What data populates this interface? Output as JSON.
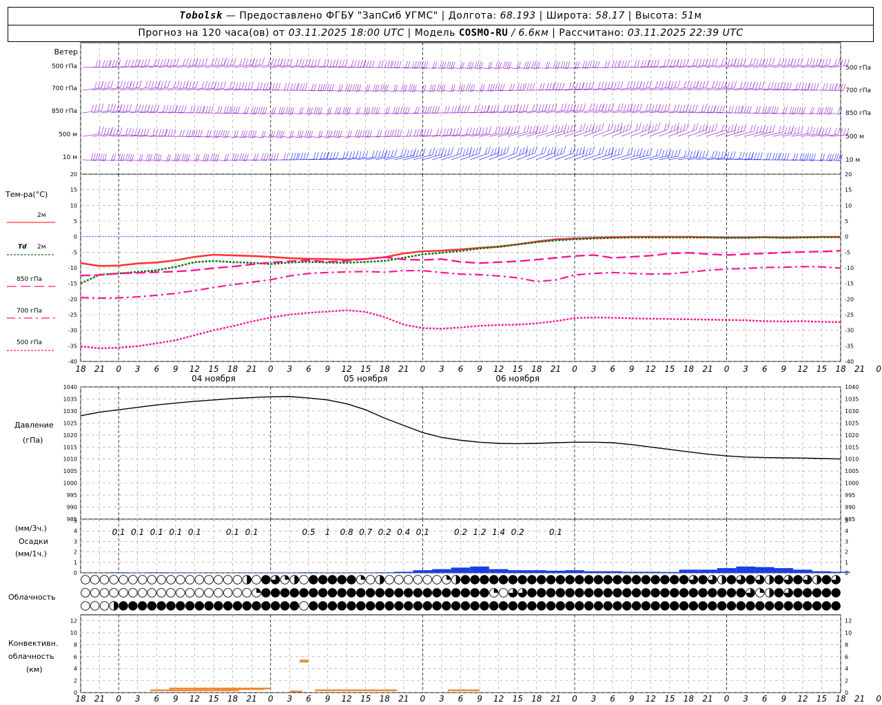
{
  "header": {
    "station": "Tobolsk",
    "provided": "— Предоставлено ФГБУ \"ЗапСиб УГМС\"",
    "lon_label": "Долгота:",
    "lon": "68.193",
    "lat_label": "Широта:",
    "lat": "58.17",
    "alt_label": "Высота:",
    "alt": "51",
    "alt_unit": "м",
    "forecast_label": "Прогноз на 120 часа(ов) от",
    "forecast_time": "03.11.2025 18:00 UTC",
    "model_label": "Модель",
    "model": "COSMO-RU",
    "resolution": "/ 6.6км",
    "calc_label": "Рассчитано:",
    "calc_time": "03.11.2025 22:39 UTC"
  },
  "labels": {
    "wind": "Ветер",
    "wind_levels": [
      "500 гПа",
      "700 гПа",
      "850 гПа",
      "500 м",
      "10  м"
    ],
    "temp": "Тем-ра(°C)",
    "t2m": "2м",
    "td": "Td",
    "td2m": "2м",
    "t850": "850 гПа",
    "t700": "700 гПа",
    "t500": "500 гПа",
    "pressure": "Давление",
    "pressure_unit": "(гПа)",
    "precip_unit1": "(мм/3ч.)",
    "precip": "Осадки",
    "precip_unit2": "(мм/1ч.)",
    "cloud": "Облачность",
    "conv1": "Конвективн.",
    "conv2": "облачность",
    "conv3": "(км)"
  },
  "colors": {
    "t2m": "#ff3333",
    "td": "#107010",
    "levels": "#ff1493",
    "wind": "#9a30d0",
    "wind_blue": "#3030ff",
    "precip": "#1a3ee6",
    "conv": "#f08a30",
    "zero": "#2040ff"
  },
  "chart_data": [
    {
      "type": "wind-barbs",
      "levels": [
        "500 гПа",
        "700 гПа",
        "850 гПа",
        "500 м",
        "10 м"
      ]
    },
    {
      "type": "line",
      "x_hours": [
        0,
        3,
        6,
        9,
        12,
        15,
        18,
        21,
        24,
        27,
        30,
        33,
        36,
        39,
        42,
        45,
        48,
        51,
        54,
        57,
        60,
        63,
        66,
        69,
        72,
        75,
        78,
        81,
        84,
        87,
        90,
        93,
        96,
        99,
        102,
        105,
        108,
        111,
        114,
        117,
        120
      ],
      "x_tick_labels": [
        "18",
        "21",
        "0",
        "3",
        "6",
        "9",
        "12",
        "15",
        "18",
        "21",
        "0",
        "3",
        "6",
        "9",
        "12",
        "15",
        "18",
        "21",
        "0",
        "3",
        "6",
        "9",
        "12",
        "15",
        "18",
        "21",
        "0",
        "3",
        "6",
        "9",
        "12",
        "15",
        "18",
        "21",
        "0",
        "3",
        "6",
        "9",
        "12",
        "15",
        "18",
        "21",
        "0"
      ],
      "date_labels": [
        "04 ноября",
        "05 ноября",
        "06 ноября"
      ],
      "ylim": [
        -40,
        20
      ],
      "yticks": [
        20,
        15,
        10,
        5,
        0,
        -5,
        -10,
        -15,
        -20,
        -25,
        -30,
        -35,
        -40
      ],
      "series": [
        {
          "name": "2м",
          "values": [
            -8.5,
            -9.4,
            -9.3,
            -8.6,
            -8.3,
            -7.6,
            -6.5,
            -5.8,
            -6,
            -6.2,
            -6.5,
            -6.9,
            -7.1,
            -7.2,
            -7.4,
            -7.2,
            -6.6,
            -5.4,
            -4.7,
            -4.5,
            -4.1,
            -3.6,
            -3.2,
            -2.5,
            -1.6,
            -0.9,
            -0.6,
            -0.4,
            -0.2,
            -0.1,
            -0.1,
            -0.1,
            -0.1,
            -0.2,
            -0.3,
            -0.3,
            -0.2,
            -0.3,
            -0.2,
            -0.1,
            -0.1
          ]
        },
        {
          "name": "Td 2м",
          "values": [
            -15,
            -12.2,
            -11.8,
            -11.3,
            -10.8,
            -9.7,
            -8.2,
            -7.8,
            -8.2,
            -8.4,
            -8.8,
            -8.3,
            -8.1,
            -8.3,
            -8.4,
            -8.1,
            -7.8,
            -6.8,
            -5.7,
            -5.2,
            -4.6,
            -3.8,
            -3.3,
            -2.5,
            -1.8,
            -1.2,
            -0.9,
            -0.6,
            -0.4,
            -0.3,
            -0.3,
            -0.3,
            -0.3,
            -0.3,
            -0.4,
            -0.4,
            -0.2,
            -0.4,
            -0.3,
            -0.2,
            -0.2
          ]
        },
        {
          "name": "850 гПа",
          "values": [
            -12.5,
            -12.3,
            -11.8,
            -11.6,
            -11.4,
            -11.2,
            -10.8,
            -10.1,
            -9.6,
            -8.9,
            -8.3,
            -7.9,
            -7.6,
            -8.1,
            -7.8,
            -7.1,
            -6.6,
            -7.3,
            -7.5,
            -7.2,
            -8.1,
            -8.5,
            -8.2,
            -7.9,
            -7.4,
            -6.8,
            -6.2,
            -5.9,
            -6.8,
            -6.5,
            -6.1,
            -5.4,
            -5.2,
            -5.6,
            -5.9,
            -5.6,
            -5.4,
            -5.1,
            -4.9,
            -4.8,
            -4.5
          ]
        },
        {
          "name": "700 гПа",
          "values": [
            -19.5,
            -19.7,
            -19.6,
            -19.3,
            -18.8,
            -18.2,
            -17.3,
            -16.3,
            -15.4,
            -14.6,
            -13.8,
            -12.6,
            -11.8,
            -11.5,
            -11.3,
            -11.2,
            -11.4,
            -10.9,
            -10.9,
            -11.5,
            -12,
            -12.2,
            -12.6,
            -13.2,
            -14.4,
            -13.9,
            -12.3,
            -11.8,
            -11.5,
            -11.8,
            -12,
            -11.9,
            -11.4,
            -10.8,
            -10.4,
            -10.2,
            -9.9,
            -9.8,
            -9.6,
            -9.7,
            -10.1
          ]
        },
        {
          "name": "500 гПа",
          "values": [
            -35.2,
            -35.8,
            -35.6,
            -35.1,
            -34.2,
            -33.2,
            -31.6,
            -30,
            -28.7,
            -27.2,
            -25.9,
            -25,
            -24.4,
            -24,
            -23.6,
            -24.1,
            -25.8,
            -28.2,
            -29.3,
            -29.5,
            -29.1,
            -28.6,
            -28.3,
            -28.2,
            -27.8,
            -27.1,
            -26.1,
            -25.9,
            -26,
            -26.2,
            -26.3,
            -26.4,
            -26.5,
            -26.6,
            -26.7,
            -26.8,
            -27.1,
            -27.2,
            -27.1,
            -27.3,
            -27.4
          ]
        }
      ]
    },
    {
      "type": "line",
      "title": "Давление",
      "ylim": [
        985,
        1040
      ],
      "yticks": [
        1040,
        1035,
        1030,
        1025,
        1020,
        1015,
        1010,
        1005,
        1000,
        995,
        990,
        985
      ],
      "x_hours": [
        0,
        3,
        6,
        9,
        12,
        15,
        18,
        21,
        24,
        27,
        30,
        33,
        36,
        39,
        42,
        45,
        48,
        51,
        54,
        57,
        60,
        63,
        66,
        69,
        72,
        75,
        78,
        81,
        84,
        87,
        90,
        93,
        96,
        99,
        102,
        105,
        108,
        111,
        114,
        117,
        120
      ],
      "values": [
        1028,
        1029.5,
        1030.5,
        1031.5,
        1032.5,
        1033.3,
        1034,
        1034.6,
        1035.2,
        1035.6,
        1035.9,
        1036,
        1035.4,
        1034.6,
        1033,
        1030.5,
        1027,
        1024,
        1021,
        1019,
        1017.8,
        1017,
        1016.5,
        1016.4,
        1016.5,
        1016.8,
        1017,
        1017,
        1016.8,
        1016,
        1015,
        1014,
        1013,
        1012,
        1011.3,
        1010.8,
        1010.6,
        1010.5,
        1010.4,
        1010.2,
        1010
      ]
    },
    {
      "type": "bar",
      "title": "Осадки",
      "ylim": [
        0,
        5
      ],
      "yticks": [
        5,
        4,
        3,
        2,
        1,
        0
      ],
      "x_hours": [
        6,
        9,
        12,
        15,
        18,
        27,
        30,
        33,
        36,
        39,
        42,
        45,
        48,
        51,
        54,
        57,
        60,
        63,
        66,
        69,
        72,
        75,
        78,
        81,
        84,
        87,
        90,
        93,
        96,
        99,
        102,
        105,
        108,
        111,
        114,
        117,
        120
      ],
      "values": [
        0.05,
        0.03,
        0.05,
        0.04,
        0.03,
        0.03,
        0.03,
        0.03,
        0.05,
        0.02,
        0.02,
        0.02,
        0.05,
        0.1,
        0.25,
        0.35,
        0.5,
        0.6,
        0.35,
        0.25,
        0.25,
        0.2,
        0.25,
        0.15,
        0.15,
        0.1,
        0.1,
        0.08,
        0.3,
        0.3,
        0.45,
        0.6,
        0.55,
        0.45,
        0.3,
        0.15,
        0.1
      ],
      "annotations_3h": [
        {
          "x": 6,
          "t": "0.1"
        },
        {
          "x": 9,
          "t": "0.1"
        },
        {
          "x": 12,
          "t": "0.1"
        },
        {
          "x": 15,
          "t": "0.1"
        },
        {
          "x": 18,
          "t": "0.1"
        },
        {
          "x": 24,
          "t": "0.1"
        },
        {
          "x": 27,
          "t": "0.1"
        },
        {
          "x": 36,
          "t": "0.5"
        },
        {
          "x": 39,
          "t": "1"
        },
        {
          "x": 42,
          "t": "0.8"
        },
        {
          "x": 45,
          "t": "0.7"
        },
        {
          "x": 48,
          "t": "0.2"
        },
        {
          "x": 51,
          "t": "0.4"
        },
        {
          "x": 54,
          "t": "0.1"
        },
        {
          "x": 60,
          "t": "0.2"
        },
        {
          "x": 63,
          "t": "1.2"
        },
        {
          "x": 66,
          "t": "1.4"
        },
        {
          "x": 69,
          "t": "0.2"
        },
        {
          "x": 75,
          "t": "0.1"
        }
      ]
    },
    {
      "type": "cloud-symbols",
      "title": "Облачность",
      "rows": [
        "high",
        "middle",
        "low"
      ]
    },
    {
      "type": "bar",
      "title": "Конвективн. облачность",
      "ylim": [
        0,
        13
      ],
      "yticks": [
        12,
        10,
        8,
        6,
        4,
        2,
        0
      ]
    }
  ]
}
